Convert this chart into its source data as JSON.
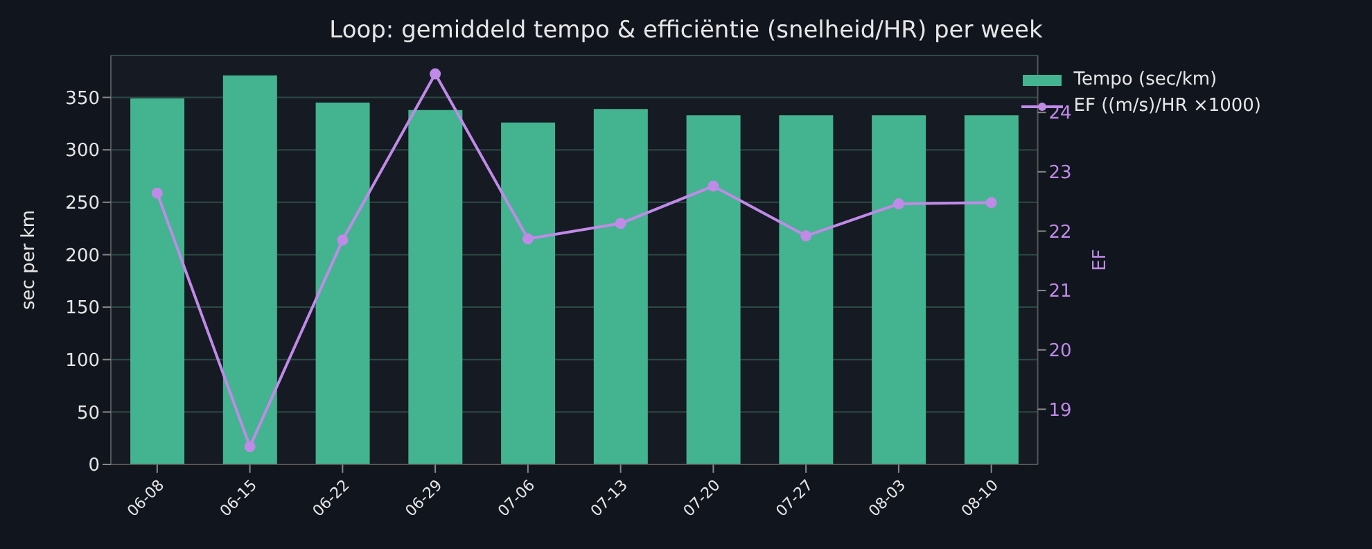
{
  "chart_data": {
    "type": "bar",
    "title": "Loop: gemiddeld tempo & efficiëntie (snelheid/HR) per week",
    "ylabel": "sec per km",
    "y2label": "EF",
    "categories": [
      "06-08",
      "06-15",
      "06-22",
      "06-29",
      "07-06",
      "07-13",
      "07-20",
      "07-27",
      "08-03",
      "08-10"
    ],
    "series": [
      {
        "name": "Tempo (sec/km)",
        "color": "#43b48f",
        "values": [
          349,
          371,
          345,
          338,
          326,
          339,
          333,
          333,
          333,
          333
        ]
      },
      {
        "name": "EF ((m/s)/HR ×1000)",
        "type": "line",
        "axis": "y2",
        "color": "#c08ae8",
        "marker": "circle",
        "values": [
          22.64,
          18.37,
          21.85,
          24.65,
          21.87,
          22.13,
          22.76,
          21.92,
          22.46,
          22.48
        ]
      }
    ],
    "ylim": [
      0,
      390
    ],
    "yticks": [
      0,
      50,
      100,
      150,
      200,
      250,
      300,
      350
    ],
    "y2lim": [
      18.07,
      24.96
    ],
    "y2ticks": [
      19,
      20,
      21,
      22,
      23,
      24
    ],
    "grid": "y",
    "legend": "top right"
  }
}
